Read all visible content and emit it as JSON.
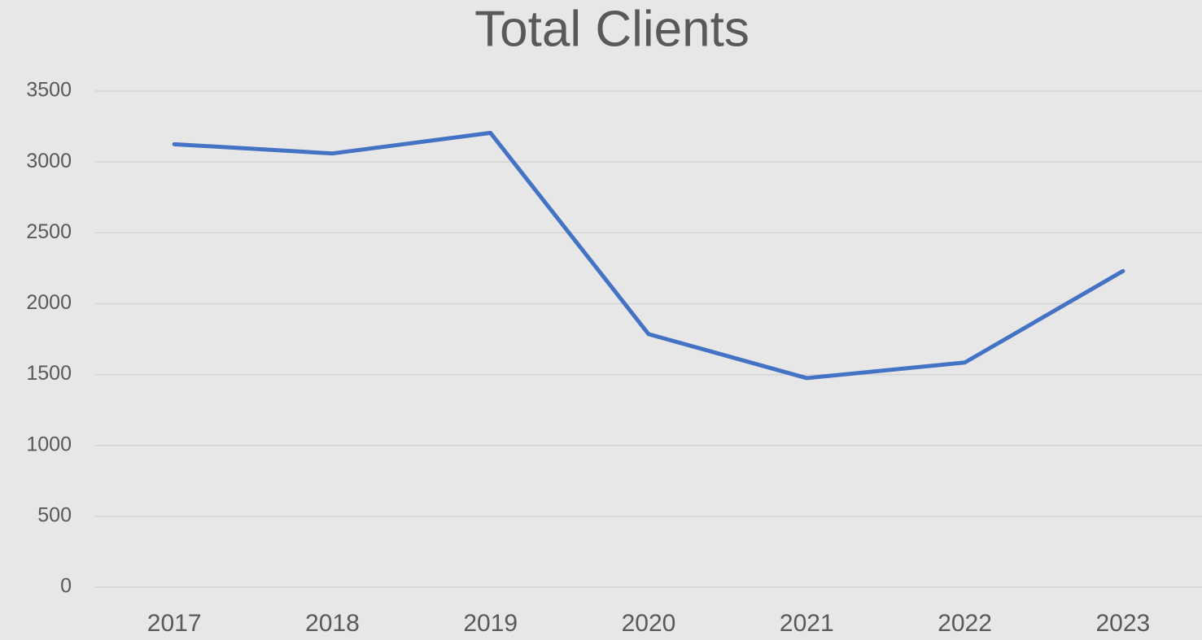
{
  "chart_data": {
    "type": "line",
    "title": "Total Clients",
    "categories": [
      "2017",
      "2018",
      "2019",
      "2020",
      "2021",
      "2022",
      "2023"
    ],
    "series": [
      {
        "name": "Total Clients",
        "color": "#4472c4",
        "values": [
          3125,
          3060,
          3205,
          1785,
          1475,
          1585,
          2230
        ]
      }
    ],
    "ylim": [
      0,
      3500
    ],
    "yticks": [
      0,
      500,
      1000,
      1500,
      2000,
      2500,
      3000,
      3500
    ],
    "grid": true
  }
}
